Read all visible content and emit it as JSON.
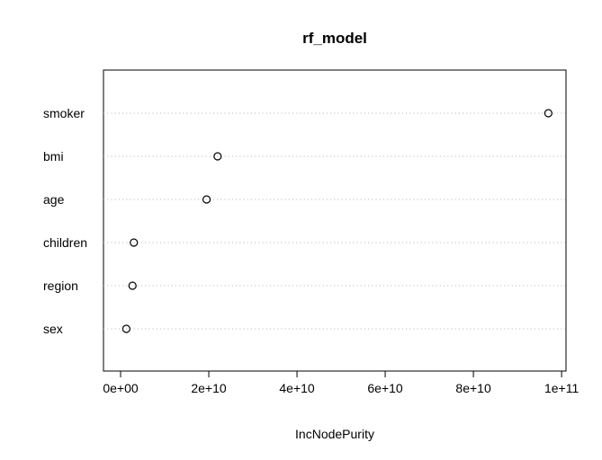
{
  "chart_data": {
    "type": "scatter",
    "title": "rf_model",
    "xlabel": "IncNodePurity",
    "ylabel": "",
    "categories": [
      "smoker",
      "bmi",
      "age",
      "children",
      "region",
      "sex"
    ],
    "values": [
      97000000000,
      22000000000,
      19500000000,
      3000000000,
      2700000000,
      1300000000
    ],
    "x_ticks": [
      0,
      20000000000,
      40000000000,
      60000000000,
      80000000000,
      100000000000
    ],
    "x_tick_labels": [
      "0e+00",
      "2e+10",
      "4e+10",
      "6e+10",
      "8e+10",
      "1e+11"
    ],
    "xlim": [
      -3880000000,
      101000000000
    ],
    "grid": "dotted horizontal guide lines",
    "legend": "none"
  }
}
